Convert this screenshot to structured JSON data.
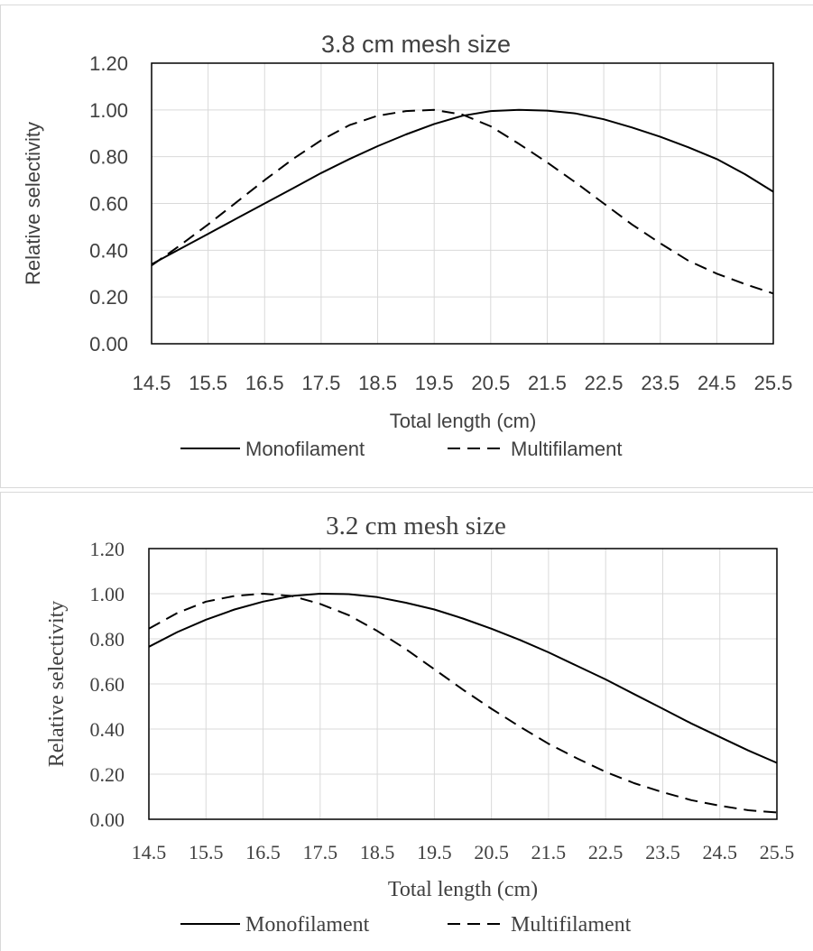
{
  "chart_data": [
    {
      "type": "line",
      "title": "3.8 cm mesh size",
      "xlabel": "Total length (cm)",
      "ylabel": "Relative selectivity",
      "x": [
        14.5,
        15,
        15.5,
        16,
        16.5,
        17,
        17.5,
        18,
        18.5,
        19,
        19.5,
        20,
        20.5,
        21,
        21.5,
        22,
        22.5,
        23,
        23.5,
        24,
        24.5,
        25,
        25.5
      ],
      "xticks": [
        "14.5",
        "15.5",
        "16.5",
        "17.5",
        "18.5",
        "19.5",
        "20.5",
        "21.5",
        "22.5",
        "23.5",
        "24.5",
        "25.5"
      ],
      "yticks": [
        "0.00",
        "0.20",
        "0.40",
        "0.60",
        "0.80",
        "1.00",
        "1.20"
      ],
      "xlim": [
        14.5,
        25.5
      ],
      "ylim": [
        0,
        1.2
      ],
      "grid": true,
      "legend_position": "bottom",
      "series": [
        {
          "name": "Monofilament",
          "dash": "solid",
          "values": [
            0.34,
            0.405,
            0.47,
            0.535,
            0.6,
            0.665,
            0.73,
            0.79,
            0.845,
            0.895,
            0.94,
            0.975,
            0.995,
            1.0,
            0.997,
            0.985,
            0.96,
            0.925,
            0.885,
            0.84,
            0.79,
            0.725,
            0.65
          ]
        },
        {
          "name": "Multifilament",
          "dash": "dashed",
          "values": [
            0.335,
            0.42,
            0.51,
            0.605,
            0.7,
            0.79,
            0.87,
            0.935,
            0.975,
            0.995,
            1.0,
            0.98,
            0.93,
            0.855,
            0.775,
            0.69,
            0.6,
            0.51,
            0.43,
            0.355,
            0.3,
            0.255,
            0.215
          ]
        }
      ]
    },
    {
      "type": "line",
      "title": "3.2 cm mesh size",
      "xlabel": "Total length (cm)",
      "ylabel": "Relative selectivity",
      "x": [
        14.5,
        15,
        15.5,
        16,
        16.5,
        17,
        17.5,
        18,
        18.5,
        19,
        19.5,
        20,
        20.5,
        21,
        21.5,
        22,
        22.5,
        23,
        23.5,
        24,
        24.5,
        25,
        25.5
      ],
      "xticks": [
        "14.5",
        "15.5",
        "16.5",
        "17.5",
        "18.5",
        "19.5",
        "20.5",
        "21.5",
        "22.5",
        "23.5",
        "24.5",
        "25.5"
      ],
      "yticks": [
        "0.00",
        "0.20",
        "0.40",
        "0.60",
        "0.80",
        "1.00",
        "1.20"
      ],
      "xlim": [
        14.5,
        25.5
      ],
      "ylim": [
        0,
        1.2
      ],
      "grid": true,
      "legend_position": "bottom",
      "series": [
        {
          "name": "Monofilament",
          "dash": "solid",
          "values": [
            0.765,
            0.83,
            0.885,
            0.93,
            0.965,
            0.99,
            1.0,
            0.998,
            0.985,
            0.96,
            0.93,
            0.89,
            0.845,
            0.795,
            0.74,
            0.68,
            0.62,
            0.555,
            0.49,
            0.425,
            0.365,
            0.305,
            0.25
          ]
        },
        {
          "name": "Multifilament",
          "dash": "dashed",
          "values": [
            0.845,
            0.915,
            0.965,
            0.99,
            1.0,
            0.99,
            0.955,
            0.905,
            0.835,
            0.755,
            0.665,
            0.575,
            0.49,
            0.41,
            0.335,
            0.27,
            0.21,
            0.16,
            0.12,
            0.085,
            0.06,
            0.04,
            0.03
          ]
        }
      ]
    }
  ]
}
